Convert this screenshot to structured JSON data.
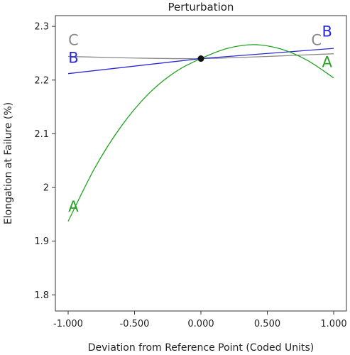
{
  "chart_data": {
    "type": "line",
    "title": "Perturbation",
    "xlabel": "Deviation from Reference Point (Coded Units)",
    "ylabel": "Elongation at Failure (%)",
    "xlim": [
      -1.0,
      1.0
    ],
    "ylim": [
      1.77,
      2.32
    ],
    "x_ticks": [
      -1.0,
      -0.5,
      0.0,
      0.5,
      1.0
    ],
    "x_tick_labels": [
      "-1.000",
      "-0.500",
      "0.000",
      "0.500",
      "1.000"
    ],
    "y_ticks": [
      1.8,
      1.9,
      2.0,
      2.1,
      2.2,
      2.3
    ],
    "y_tick_labels": [
      "1.8",
      "1.9",
      "2",
      "2.1",
      "2.2",
      "2.3"
    ],
    "grid": false,
    "reference_point": {
      "x": 0.0,
      "y": 2.24
    },
    "series": [
      {
        "name": "A",
        "color": "#22a322",
        "x": [
          -1.0,
          -0.8,
          -0.6,
          -0.4,
          -0.2,
          0.0,
          0.2,
          0.4,
          0.6,
          0.8,
          1.0
        ],
        "y": [
          1.937,
          2.036,
          2.114,
          2.173,
          2.214,
          2.24,
          2.259,
          2.266,
          2.258,
          2.237,
          2.204
        ]
      },
      {
        "name": "B",
        "color": "#2a2ad8",
        "x": [
          -1.0,
          0.0,
          1.0
        ],
        "y": [
          2.212,
          2.24,
          2.259
        ]
      },
      {
        "name": "C",
        "color": "#8a8a8a",
        "x": [
          -1.0,
          -0.5,
          0.0,
          0.5,
          1.0
        ],
        "y": [
          2.244,
          2.241,
          2.24,
          2.244,
          2.249
        ]
      }
    ],
    "series_label_positions": [
      {
        "series": "A",
        "x": -0.96,
        "y": 1.955
      },
      {
        "series": "A",
        "x": 0.95,
        "y": 2.224
      },
      {
        "series": "B",
        "x": -0.96,
        "y": 2.232
      },
      {
        "series": "B",
        "x": 0.95,
        "y": 2.281
      },
      {
        "series": "C",
        "x": -0.96,
        "y": 2.265
      },
      {
        "series": "C",
        "x": 0.87,
        "y": 2.265
      }
    ]
  }
}
